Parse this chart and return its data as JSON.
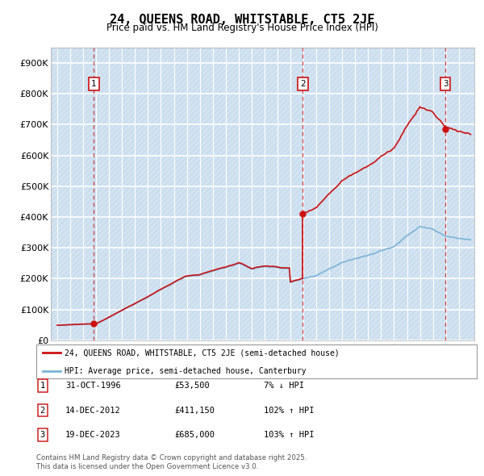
{
  "title": "24, QUEENS ROAD, WHITSTABLE, CT5 2JE",
  "subtitle": "Price paid vs. HM Land Registry's House Price Index (HPI)",
  "ylim": [
    0,
    950000
  ],
  "yticks": [
    0,
    100000,
    200000,
    300000,
    400000,
    500000,
    600000,
    700000,
    800000,
    900000
  ],
  "ytick_labels": [
    "£0",
    "£100K",
    "£200K",
    "£300K",
    "£400K",
    "£500K",
    "£600K",
    "£700K",
    "£800K",
    "£900K"
  ],
  "xlim_start": 1993.5,
  "xlim_end": 2026.2,
  "sales": [
    {
      "date_num": 1996.83,
      "price": 53500,
      "label": "1"
    },
    {
      "date_num": 2012.96,
      "price": 411150,
      "label": "2"
    },
    {
      "date_num": 2023.96,
      "price": 685000,
      "label": "3"
    }
  ],
  "hpi_color": "#7ab4d8",
  "price_color": "#cc1111",
  "vline_color": "#cc2222",
  "bg_color": "#dce8f5",
  "grid_color": "#ffffff",
  "legend_line1": "24, QUEENS ROAD, WHITSTABLE, CT5 2JE (semi-detached house)",
  "legend_line2": "HPI: Average price, semi-detached house, Canterbury",
  "footer1": "Contains HM Land Registry data © Crown copyright and database right 2025.",
  "footer2": "This data is licensed under the Open Government Licence v3.0.",
  "table_rows": [
    [
      "1",
      "31-OCT-1996",
      "£53,500",
      "7% ↓ HPI"
    ],
    [
      "2",
      "14-DEC-2012",
      "£411,150",
      "102% ↑ HPI"
    ],
    [
      "3",
      "19-DEC-2023",
      "£685,000",
      "103% ↑ HPI"
    ]
  ]
}
